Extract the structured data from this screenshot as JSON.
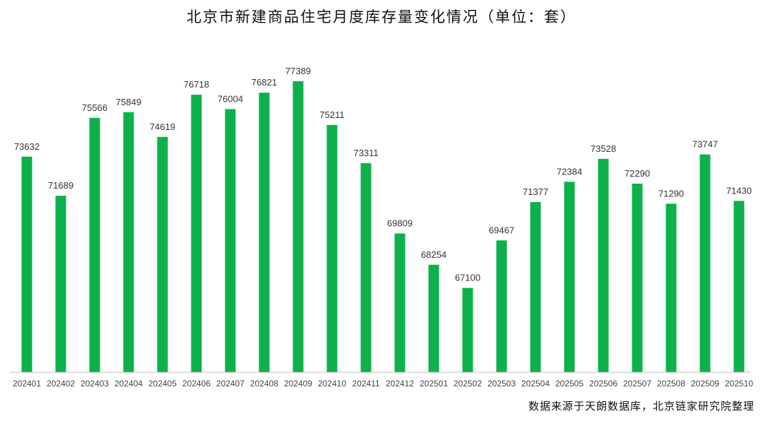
{
  "chart_data": {
    "type": "bar",
    "title": "北京市新建商品住宅月度库存量变化情况（单位：套）",
    "source": "数据来源于天朗数据库，北京链家研究院整理",
    "xlabel": "",
    "ylabel": "",
    "categories": [
      "202401",
      "202402",
      "202403",
      "202404",
      "202405",
      "202406",
      "202407",
      "202408",
      "202409",
      "202410",
      "202411",
      "202412",
      "202501",
      "202502",
      "202503",
      "202504",
      "202505",
      "202506",
      "202507",
      "202508",
      "202509",
      "202510"
    ],
    "values": [
      73632,
      71689,
      75566,
      75849,
      74619,
      76718,
      76004,
      76821,
      77389,
      75211,
      73311,
      69809,
      68254,
      67100,
      69467,
      71377,
      72384,
      73528,
      72290,
      71290,
      73747,
      71430
    ],
    "data_labels": [
      "73632",
      "71689",
      "75566",
      "75849",
      "74619",
      "76718",
      "76004",
      "76821",
      "77389",
      "75211",
      "73311",
      "69809",
      "68254",
      "67100",
      "69467",
      "71377",
      "72384",
      "73528",
      "72290",
      "71290",
      "73747",
      "71430"
    ],
    "ylim": [
      62900,
      77389
    ],
    "grid": false,
    "legend": "none",
    "colors": {
      "bar": "#0db14b",
      "axis": "#bfbfbf"
    }
  }
}
